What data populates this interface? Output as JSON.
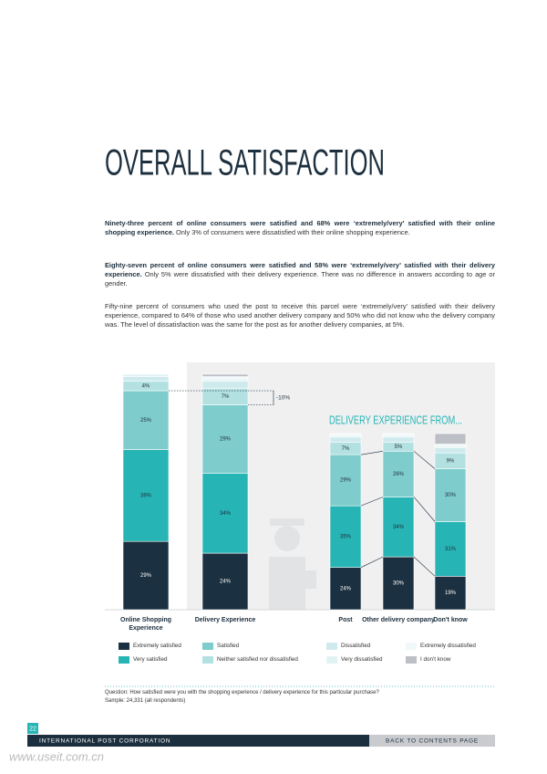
{
  "title": "OVERALL SATISFACTION",
  "paragraphs": [
    {
      "bold": "Ninety-three percent of online consumers were satisfied and 68% were ‘extremely/very’ satisfied with their online shopping experience.",
      "text": " Only 3% of consumers were dissatisfied with their online shopping experience."
    },
    {
      "bold": "Eighty-seven percent of online consumers were satisfied and 58% were ‘extremely/very’ satisfied with their delivery experience.",
      "text": " Only 5% were dissatisfied with their delivery experience. There was no difference in answers according to age or gender."
    },
    {
      "text": "Fifty-nine percent of consumers who used the post to receive this parcel were ‘extremely/very’ satisfied with their delivery experience, compared to 64% of those who used another delivery company and 50% who did not know who the delivery company was. The level of dissatisfaction was the same for the post as for another delivery companies, at 5%."
    }
  ],
  "legend": [
    {
      "name": "Extremely satisfied",
      "color": "#1b3040"
    },
    {
      "name": "Very satisfied",
      "color": "#27b4b4"
    },
    {
      "name": "Satisfied",
      "color": "#7fcccc"
    },
    {
      "name": "Neither satisfied nor dissatisfied",
      "color": "#b3e1e1"
    },
    {
      "name": "Dissatisfied",
      "color": "#cfeaed"
    },
    {
      "name": "Very dissatisfied",
      "color": "#e2f3f4"
    },
    {
      "name": "Extremely dissatisfied",
      "color": "#f1f8f9"
    },
    {
      "name": "I don't know",
      "color": "#bcbfc5"
    }
  ],
  "chart_data": [
    {
      "type": "bar",
      "stacked": true,
      "ylim": [
        0,
        100
      ],
      "categories": [
        "Online Shopping Experience",
        "Delivery Experience"
      ],
      "annotation": "-10%",
      "series": [
        {
          "values": [
            29,
            24
          ],
          "value_labels": [
            "29%",
            "24%"
          ]
        },
        {
          "values": [
            39,
            34
          ],
          "value_labels": [
            "39%",
            "34%"
          ]
        },
        {
          "values": [
            25,
            29
          ],
          "value_labels": [
            "25%",
            "29%"
          ]
        },
        {
          "values": [
            4,
            7
          ],
          "value_labels": [
            "4%",
            "7%"
          ]
        },
        {
          "values": [
            2,
            3
          ],
          "value_labels": [
            null,
            null
          ]
        },
        {
          "values": [
            1,
            1
          ],
          "value_labels": [
            null,
            null
          ]
        },
        {
          "values": [
            0,
            1
          ],
          "value_labels": [
            null,
            null
          ]
        },
        {
          "values": [
            0,
            1
          ],
          "value_labels": [
            null,
            null
          ]
        }
      ]
    },
    {
      "type": "bar",
      "stacked": true,
      "ylim": [
        0,
        100
      ],
      "title": "DELIVERY EXPERIENCE FROM...",
      "categories": [
        "Post",
        "Other delivery company",
        "Don't know"
      ],
      "series": [
        {
          "values": [
            24,
            30,
            19
          ],
          "value_labels": [
            "24%",
            "30%",
            "19%"
          ]
        },
        {
          "values": [
            35,
            34,
            31
          ],
          "value_labels": [
            "35%",
            "34%",
            "31%"
          ]
        },
        {
          "values": [
            29,
            26,
            30
          ],
          "value_labels": [
            "29%",
            "26%",
            "30%"
          ]
        },
        {
          "values": [
            7,
            5,
            9
          ],
          "value_labels": [
            "7%",
            "5%",
            "9%"
          ]
        },
        {
          "values": [
            3,
            3,
            3
          ],
          "value_labels": [
            null,
            null,
            null
          ]
        },
        {
          "values": [
            1,
            1,
            1
          ],
          "value_labels": [
            null,
            null,
            null
          ]
        },
        {
          "values": [
            1,
            1,
            1
          ],
          "value_labels": [
            null,
            null,
            null
          ]
        },
        {
          "values": [
            0,
            0,
            6
          ],
          "value_labels": [
            null,
            null,
            null
          ]
        }
      ]
    }
  ],
  "question": "Question: How satisfied were you with the shopping experience / delivery experience for this particular purchase?",
  "sample": "Sample: 24,331 (all respondents)",
  "footer": {
    "page": "22",
    "org": "INTERNATIONAL POST CORPORATION",
    "link": "BACK TO CONTENTS PAGE",
    "watermark": "www.useit.com.cn"
  }
}
